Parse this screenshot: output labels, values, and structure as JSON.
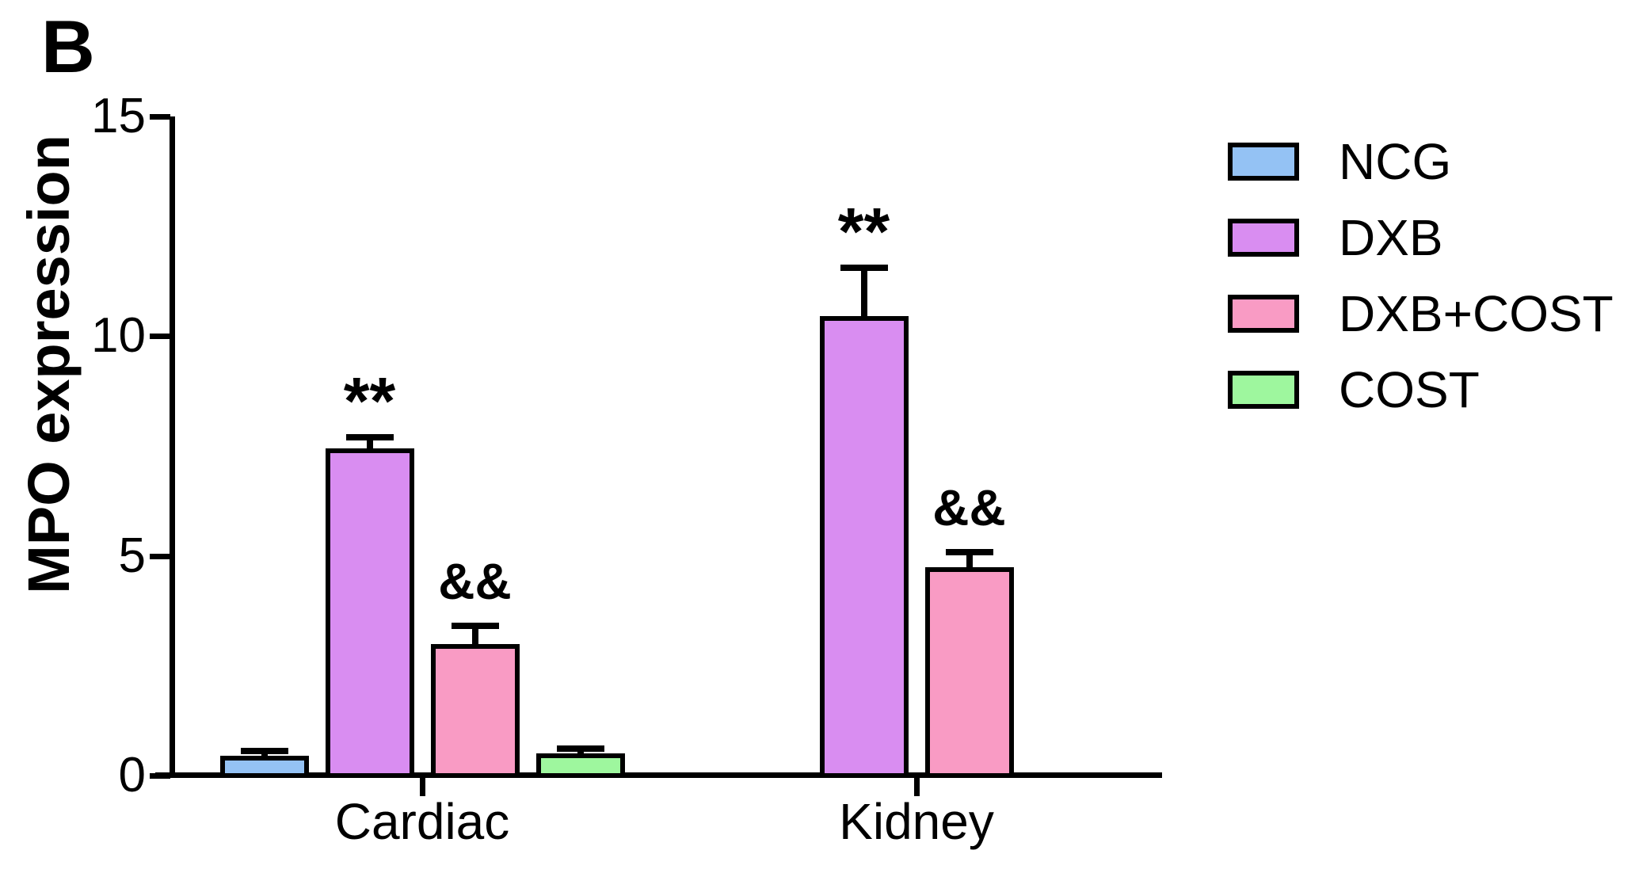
{
  "panel_label": "B",
  "chart_data": {
    "type": "bar",
    "title": "",
    "ylabel": "MPO expression",
    "xlabel": "",
    "ylim": [
      0,
      15
    ],
    "yticks": [
      0,
      5,
      10,
      15
    ],
    "grid": false,
    "legend_position": "right",
    "categories": [
      "Cardiac",
      "Kidney"
    ],
    "series": [
      {
        "name": "NCG",
        "color": "#94C2F4",
        "values": [
          0.45,
          null
        ],
        "errors": [
          0.1,
          null
        ],
        "annotations": [
          "",
          null
        ]
      },
      {
        "name": "DXB",
        "color": "#D98DF1",
        "values": [
          7.45,
          10.45
        ],
        "errors": [
          0.25,
          1.1
        ],
        "annotations": [
          "**",
          "**"
        ]
      },
      {
        "name": "DXB+COST",
        "color": "#F99BC4",
        "values": [
          3.0,
          4.75
        ],
        "errors": [
          0.4,
          0.33
        ],
        "annotations": [
          "&&",
          "&&"
        ]
      },
      {
        "name": "COST",
        "color": "#9EF79E",
        "values": [
          0.5,
          null
        ],
        "errors": [
          0.12,
          null
        ],
        "annotations": [
          "",
          null
        ]
      }
    ],
    "significance_symbols": {
      "vs_control": "**",
      "vs_dxb": "&&"
    },
    "axis_color": "#000000",
    "bar_border_color": "#000000"
  }
}
